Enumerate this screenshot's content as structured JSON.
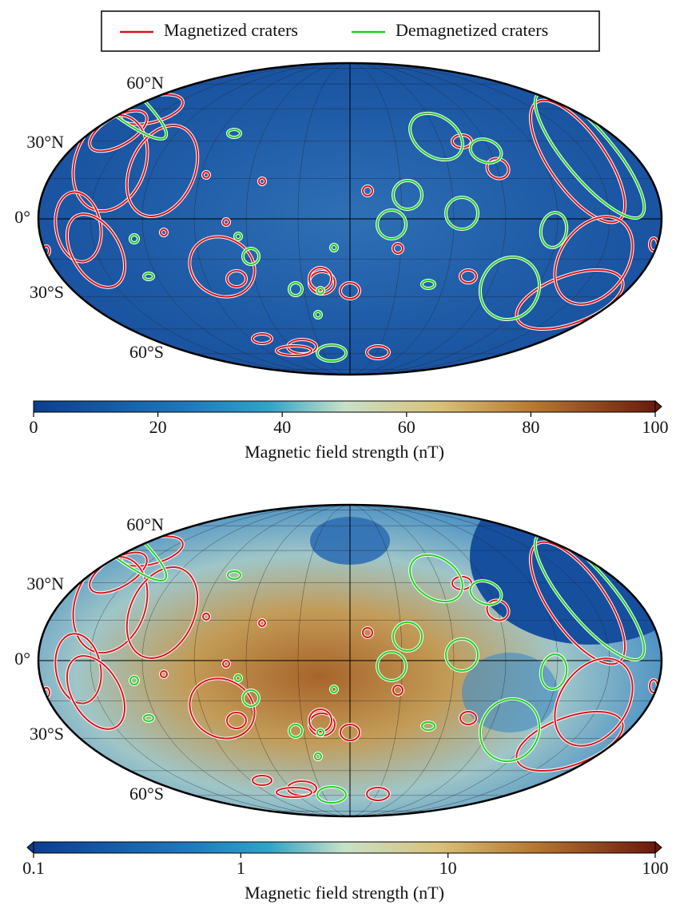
{
  "legend": {
    "entries": [
      {
        "name": "Magnetized craters",
        "color": "#d7141a"
      },
      {
        "name": "Demagnetized craters",
        "color": "#1fd11f"
      }
    ]
  },
  "maps": [
    {
      "lat_labels": [
        "60°N",
        "30°N",
        "0°",
        "30°S",
        "60°S"
      ],
      "colorbar": {
        "label": "Magnetic field strength (nT)",
        "lim": [
          0,
          100
        ],
        "ticks": [
          0,
          20,
          40,
          60,
          80,
          100
        ],
        "scale": "linear"
      }
    },
    {
      "lat_labels": [
        "60°N",
        "30°N",
        "0°",
        "30°S",
        "60°S"
      ],
      "colorbar": {
        "label": "Magnetic field strength (nT)",
        "lim": [
          0.1,
          100
        ],
        "ticks": [
          0.1,
          1,
          10,
          100
        ],
        "scale": "log"
      }
    }
  ]
}
